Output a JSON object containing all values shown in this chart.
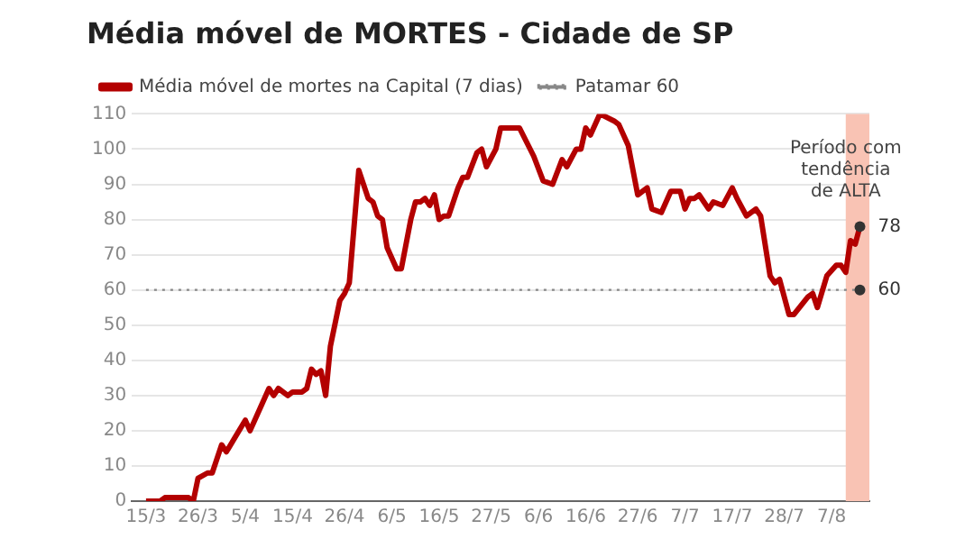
{
  "chart_data": {
    "type": "line",
    "title": "Média móvel de MORTES - Cidade de SP",
    "x": [
      "--03-15",
      "--03-18",
      "--03-19",
      "--03-24",
      "--03-25",
      "--03-26",
      "--03-28",
      "--03-29",
      "--03-31",
      "--04-01",
      "--04-05",
      "--04-06",
      "--04-08",
      "--04-10",
      "--04-11",
      "--04-12",
      "--04-14",
      "--04-15",
      "--04-17",
      "--04-18",
      "--04-19",
      "--04-20",
      "--04-21",
      "--04-22",
      "--04-23",
      "--04-25",
      "--04-26",
      "--04-27",
      "--04-29",
      "--05-01",
      "--05-02",
      "--05-03",
      "--05-04",
      "--05-05",
      "--05-07",
      "--05-08",
      "--05-10",
      "--05-11",
      "--05-12",
      "--05-13",
      "--05-14",
      "--05-15",
      "--05-16",
      "--05-17",
      "--05-18",
      "--05-20",
      "--05-21",
      "--05-22",
      "--05-24",
      "--05-25",
      "--05-26",
      "--05-28",
      "--05-29",
      "--05-31",
      "--06-02",
      "--06-05",
      "--06-07",
      "--06-09",
      "--06-11",
      "--06-12",
      "--06-14",
      "--06-15",
      "--06-16",
      "--06-17",
      "--06-19",
      "--06-22",
      "--06-23",
      "--06-25",
      "--06-27",
      "--06-29",
      "--06-30",
      "--07-02",
      "--07-04",
      "--07-06",
      "--07-07",
      "--07-08",
      "--07-09",
      "--07-10",
      "--07-12",
      "--07-13",
      "--07-15",
      "--07-17",
      "--07-18",
      "--07-20",
      "--07-22",
      "--07-23",
      "--07-25",
      "--07-26",
      "--07-27",
      "--07-29",
      "--07-30",
      "--08-02",
      "--08-03",
      "--08-04",
      "--08-06",
      "--08-08",
      "--08-09",
      "--08-10",
      "--08-11",
      "--08-12",
      "--08-13"
    ],
    "series": [
      {
        "name": "Média móvel de mortes na Capital (7 dias)",
        "color": "#b30000",
        "values": [
          0,
          0,
          1,
          1,
          0,
          6.5,
          8,
          8,
          16,
          14,
          23,
          20,
          26,
          32,
          30,
          32,
          30,
          31,
          31,
          32,
          37.5,
          36,
          37,
          30,
          44,
          57,
          59,
          62,
          94,
          86,
          85,
          81,
          80,
          72,
          66,
          66,
          80,
          85,
          85,
          86,
          84,
          87,
          80,
          81,
          81,
          89,
          92,
          92,
          99,
          100,
          95,
          100,
          106,
          106,
          106,
          98,
          91,
          90,
          97,
          95,
          100,
          100,
          106,
          104,
          110,
          108,
          107,
          101,
          87,
          89,
          83,
          82,
          88,
          88,
          83,
          86,
          86,
          87,
          83,
          85,
          84,
          89,
          86,
          81,
          83,
          81,
          64,
          62,
          63,
          53,
          53,
          58,
          59,
          55,
          64,
          67,
          67,
          65,
          74,
          73,
          78
        ]
      }
    ],
    "xlim": [
      "--03-12",
      "--08-15"
    ],
    "xticks": [
      {
        "value": "--03-15",
        "label": "15/3"
      },
      {
        "value": "--03-26",
        "label": "26/3"
      },
      {
        "value": "--04-05",
        "label": "5/4"
      },
      {
        "value": "--04-15",
        "label": "15/4"
      },
      {
        "value": "--04-26",
        "label": "26/4"
      },
      {
        "value": "--05-06",
        "label": "6/5"
      },
      {
        "value": "--05-16",
        "label": "16/5"
      },
      {
        "value": "--05-27",
        "label": "27/5"
      },
      {
        "value": "--06-06",
        "label": "6/6"
      },
      {
        "value": "--06-16",
        "label": "16/6"
      },
      {
        "value": "--06-27",
        "label": "27/6"
      },
      {
        "value": "--07-07",
        "label": "7/7"
      },
      {
        "value": "--07-17",
        "label": "17/7"
      },
      {
        "value": "--07-28",
        "label": "28/7"
      },
      {
        "value": "--08-07",
        "label": "7/8"
      }
    ],
    "ylim": [
      0,
      110
    ],
    "yticks": [
      0,
      10,
      20,
      30,
      40,
      50,
      60,
      70,
      80,
      90,
      100,
      110
    ],
    "grid": "y",
    "legend": "top left",
    "ref_lines": [
      {
        "axis": "y",
        "value": 60,
        "label": "Patamar 60",
        "color": "#888888",
        "line_style": "dotted"
      }
    ],
    "bands": [
      {
        "axis": "x",
        "from": "--08-10",
        "to": "--08-15",
        "label": "Período com tendência de ALTA",
        "color": "#f9c3b4"
      }
    ],
    "annotations": [
      {
        "text": "78",
        "x": "--08-13",
        "y": 78
      },
      {
        "text": "60",
        "x": "--08-13",
        "y": 60
      }
    ]
  }
}
